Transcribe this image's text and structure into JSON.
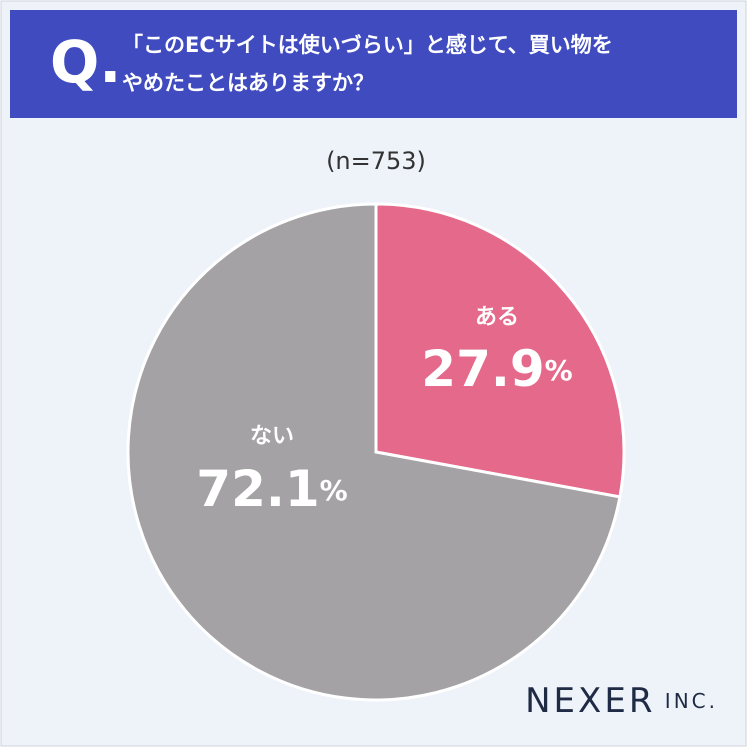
{
  "chart_data": {
    "type": "pie",
    "question_label": "Q.",
    "title": [
      "「このECサイトは使いづらい」と感じて、買い物を",
      "やめたことはありますか？"
    ],
    "subtitle": "(n=753)",
    "categories": [
      "ある",
      "ない"
    ],
    "values": [
      27.9,
      72.1
    ],
    "value_labels": [
      "27.9%",
      "72.1%"
    ],
    "colors": [
      "#e5698a",
      "#a4a2a4"
    ],
    "brand": "NEXER INC."
  }
}
